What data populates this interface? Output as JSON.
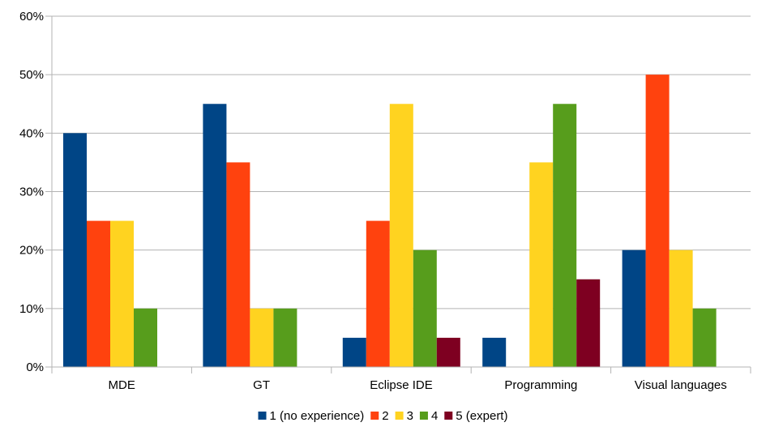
{
  "chart_data": {
    "type": "bar",
    "categories": [
      "MDE",
      "GT",
      "Eclipse IDE",
      "Programming",
      "Visual languages"
    ],
    "series": [
      {
        "name": "1 (no experience)",
        "color": "#004586",
        "values": [
          40,
          45,
          5,
          5,
          20
        ]
      },
      {
        "name": "2",
        "color": "#ff420e",
        "values": [
          25,
          35,
          25,
          0,
          50
        ]
      },
      {
        "name": "3",
        "color": "#ffd320",
        "values": [
          25,
          10,
          45,
          35,
          20
        ]
      },
      {
        "name": "4",
        "color": "#579d1c",
        "values": [
          10,
          10,
          20,
          45,
          10
        ]
      },
      {
        "name": "5 (expert)",
        "color": "#7e0021",
        "values": [
          0,
          0,
          5,
          15,
          0
        ]
      }
    ],
    "ylim": [
      0,
      60
    ],
    "yticks": [
      "0%",
      "10%",
      "20%",
      "30%",
      "40%",
      "50%",
      "60%"
    ],
    "grid": true,
    "legend_position": "bottom"
  }
}
